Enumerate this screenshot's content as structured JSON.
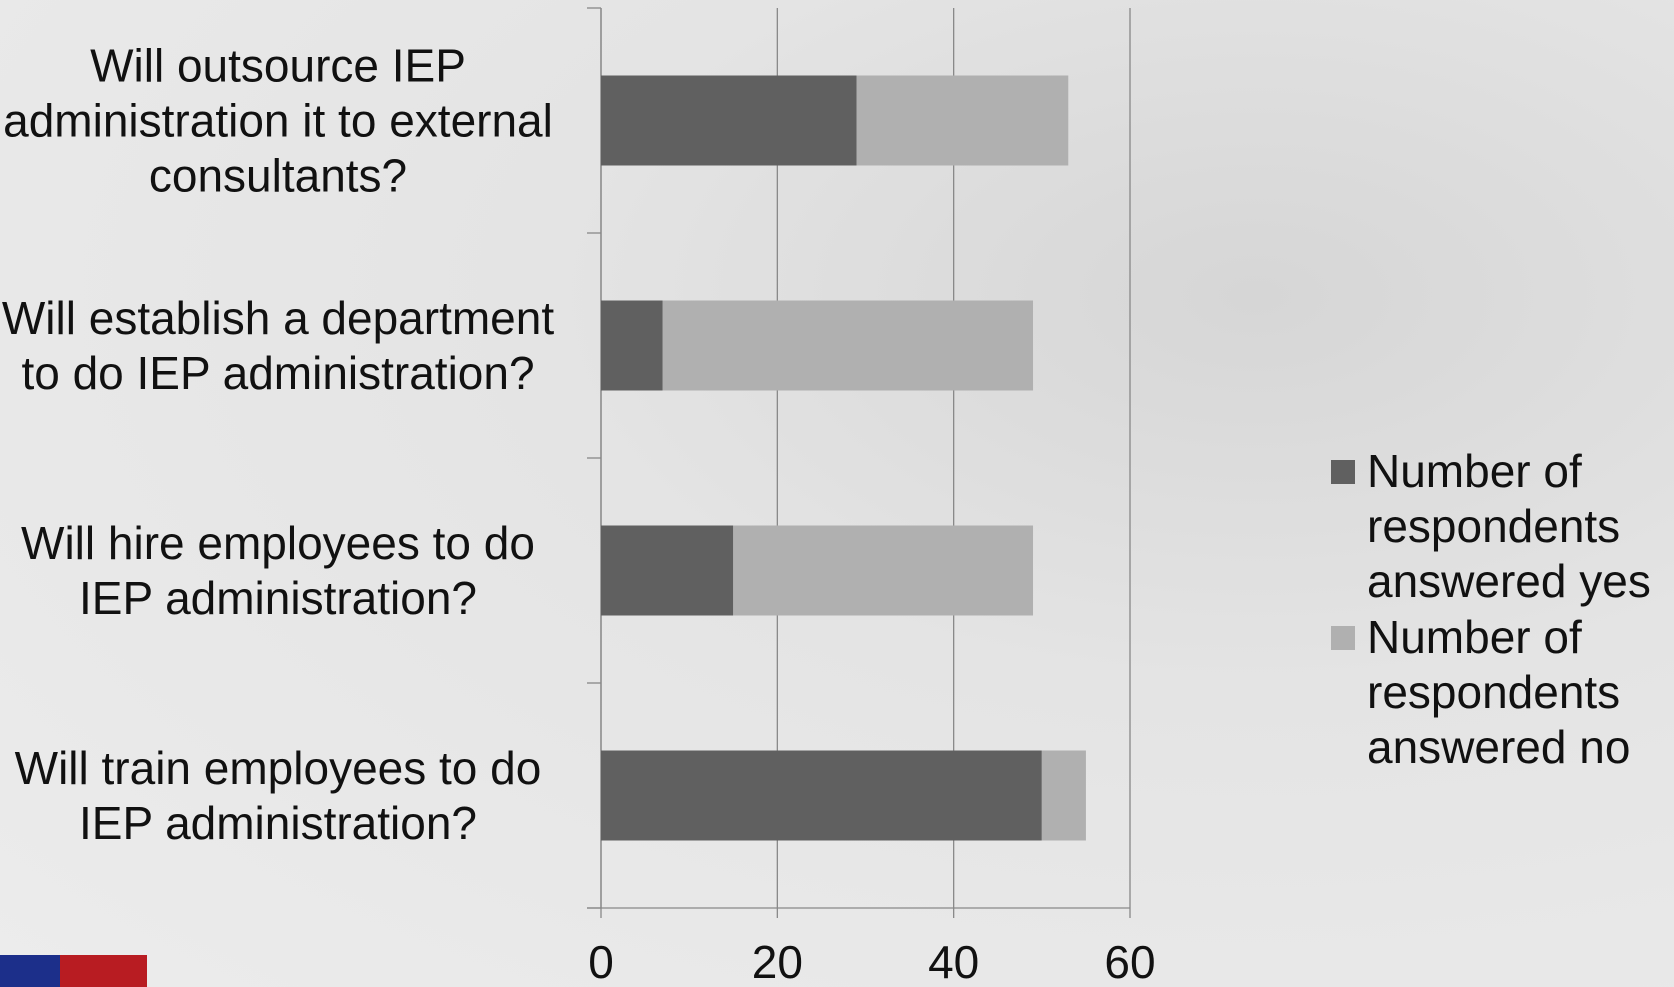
{
  "chart_data": {
    "type": "stacked_bar_horizontal",
    "categories": [
      "Will outsource IEP administration it to external consultants?",
      "Will establish a department to do IEP administration?",
      "Will hire employees to do IEP administration?",
      "Will train employees to do IEP administration?"
    ],
    "series": [
      {
        "name": "Number of respondents answered yes",
        "color": "#606060",
        "values": [
          29,
          7,
          15,
          50
        ]
      },
      {
        "name": "Number of respondents answered no",
        "color": "#b0b0b0",
        "values": [
          24,
          42,
          34,
          5
        ]
      }
    ],
    "xlim": [
      0,
      60
    ],
    "xticks": [
      0,
      20,
      40,
      60
    ],
    "grid": true,
    "legend": "right"
  }
}
